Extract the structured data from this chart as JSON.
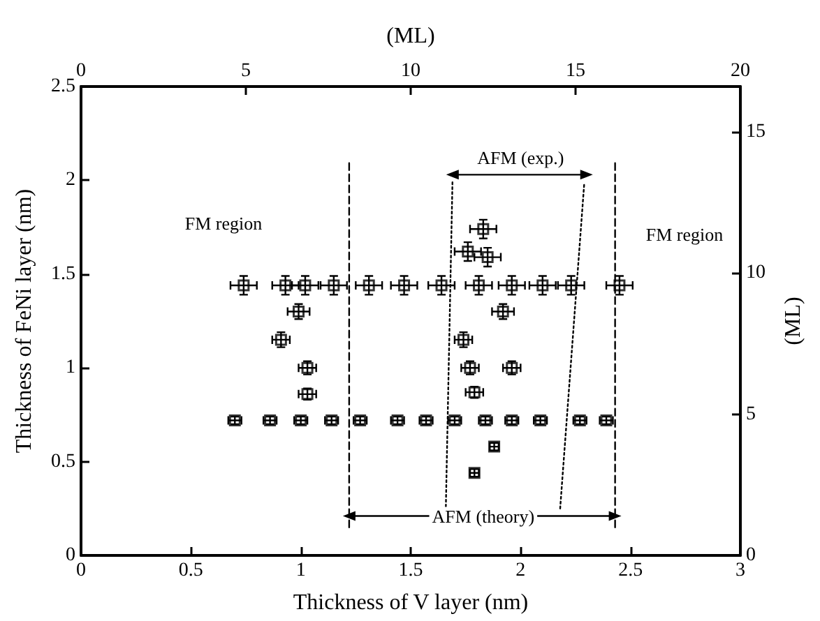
{
  "chart_data": {
    "type": "scatter",
    "xlabel": "Thickness of V layer (nm)",
    "ylabel": "Thickness of FeNi layer (nm)",
    "x2label": "(ML)",
    "y2label": "(ML)",
    "xlim": [
      0,
      3
    ],
    "xticks": [
      0,
      0.5,
      1,
      1.5,
      2,
      2.5,
      3
    ],
    "ylim": [
      0,
      2.5
    ],
    "yticks": [
      0,
      0.5,
      1,
      1.5,
      2,
      2.5
    ],
    "x2lim": [
      0,
      20
    ],
    "x2ticks": [
      0,
      5,
      10,
      15,
      20
    ],
    "y2lim": [
      0,
      16.6
    ],
    "y2ticks": [
      0,
      5,
      10,
      15
    ],
    "grid": false,
    "marker": "square",
    "series": [
      {
        "color": "#000000",
        "x": [
          0.74,
          0.93,
          1.02,
          1.15,
          1.31,
          1.47,
          1.64,
          1.81,
          1.96,
          2.1,
          2.23,
          2.45,
          1.83,
          1.76,
          1.85,
          1.92,
          0.99,
          1.74,
          0.91,
          1.77,
          1.96,
          1.03,
          1.79,
          1.03,
          0.7,
          0.86,
          1.0,
          1.14,
          1.27,
          1.44,
          1.57,
          1.7,
          1.84,
          1.96,
          2.09,
          2.27,
          2.39,
          1.88,
          1.79
        ],
        "values": [
          1.44,
          1.44,
          1.44,
          1.44,
          1.44,
          1.44,
          1.44,
          1.44,
          1.44,
          1.44,
          1.44,
          1.44,
          1.74,
          1.62,
          1.59,
          1.3,
          1.3,
          1.15,
          1.15,
          1.0,
          1.0,
          1.0,
          0.87,
          0.86,
          0.72,
          0.72,
          0.72,
          0.72,
          0.72,
          0.72,
          0.72,
          0.72,
          0.72,
          0.72,
          0.72,
          0.72,
          0.72,
          0.58,
          0.44
        ],
        "xerrors": [
          0.06,
          0.06,
          0.06,
          0.06,
          0.06,
          0.06,
          0.06,
          0.06,
          0.06,
          0.06,
          0.06,
          0.06,
          0.06,
          0.06,
          0.06,
          0.05,
          0.05,
          0.04,
          0.04,
          0.04,
          0.04,
          0.04,
          0.04,
          0.04,
          0.03,
          0.03,
          0.03,
          0.03,
          0.03,
          0.03,
          0.03,
          0.03,
          0.03,
          0.03,
          0.03,
          0.03,
          0.03,
          0.02,
          0.02
        ],
        "errors": [
          0.05,
          0.05,
          0.05,
          0.05,
          0.05,
          0.05,
          0.05,
          0.05,
          0.05,
          0.05,
          0.05,
          0.05,
          0.05,
          0.05,
          0.05,
          0.04,
          0.04,
          0.04,
          0.04,
          0.035,
          0.035,
          0.035,
          0.03,
          0.03,
          0.02,
          0.02,
          0.02,
          0.02,
          0.02,
          0.02,
          0.02,
          0.02,
          0.02,
          0.02,
          0.02,
          0.02,
          0.02,
          0.02,
          0.02
        ]
      },
      {
        "type": "line",
        "color": "#000000",
        "line_style": "dashed",
        "marker": "none",
        "x": [
          1.22,
          1.22
        ],
        "values": [
          0.15,
          2.1
        ]
      },
      {
        "type": "line",
        "color": "#000000",
        "line_style": "dashed",
        "marker": "none",
        "x": [
          2.43,
          2.43
        ],
        "values": [
          0.15,
          2.1
        ]
      },
      {
        "type": "line",
        "color": "#000000",
        "line_style": "dotted",
        "marker": "none",
        "x": [
          1.66,
          1.69
        ],
        "values": [
          0.26,
          1.99
        ]
      },
      {
        "type": "line",
        "color": "#000000",
        "line_style": "dotted",
        "marker": "none",
        "x": [
          2.18,
          2.29
        ],
        "values": [
          0.25,
          1.99
        ]
      },
      {
        "type": "line",
        "color": "#000000",
        "line_style": "solid",
        "marker": "triangle",
        "x": [
          1.69,
          2.3
        ],
        "values": [
          2.03,
          2.03
        ]
      },
      {
        "type": "line",
        "color": "#000000",
        "line_style": "solid",
        "marker": "triangle",
        "x": [
          1.22,
          2.43
        ],
        "values": [
          0.21,
          0.21
        ]
      }
    ],
    "annotations": [
      "FM region",
      "FM region",
      {
        "text": "AFM (exp.)",
        "x": 2.0,
        "y": 2.03
      },
      {
        "text": "AFM (theory)",
        "x": 1.83,
        "y": 0.21
      }
    ]
  }
}
